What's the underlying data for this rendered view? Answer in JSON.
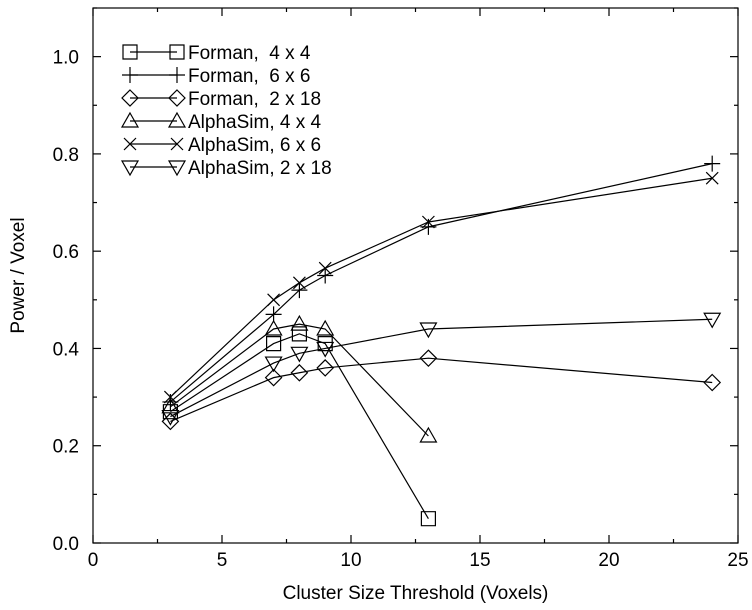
{
  "chart_data": {
    "type": "line",
    "title": "",
    "xlabel": "Cluster Size Threshold (Voxels)",
    "ylabel": "Power / Voxel",
    "xlim": [
      0,
      25
    ],
    "ylim": [
      0,
      1.1
    ],
    "xticks": [
      0,
      5,
      10,
      15,
      20,
      25
    ],
    "yticks": [
      0.0,
      0.2,
      0.4,
      0.6,
      0.8,
      1.0
    ],
    "xtick_labels": [
      "0",
      "5",
      "10",
      "15",
      "20",
      "25"
    ],
    "ytick_labels": [
      "0.0",
      "0.2",
      "0.4",
      "0.6",
      "0.8",
      "1.0"
    ],
    "grid": false,
    "legend_position": "top-left",
    "series": [
      {
        "name": "Forman,  4 x 4",
        "marker": "square",
        "points": [
          [
            3,
            0.27
          ],
          [
            7,
            0.41
          ],
          [
            8,
            0.43
          ],
          [
            9,
            0.41
          ],
          [
            13,
            0.05
          ]
        ]
      },
      {
        "name": "Forman,  6 x 6",
        "marker": "plus",
        "points": [
          [
            3,
            0.29
          ],
          [
            7,
            0.47
          ],
          [
            8,
            0.52
          ],
          [
            9,
            0.55
          ],
          [
            13,
            0.65
          ],
          [
            24,
            0.78
          ]
        ]
      },
      {
        "name": "Forman,  2 x 18",
        "marker": "diamond",
        "points": [
          [
            3,
            0.25
          ],
          [
            7,
            0.34
          ],
          [
            8,
            0.35
          ],
          [
            9,
            0.36
          ],
          [
            13,
            0.38
          ],
          [
            24,
            0.33
          ]
        ]
      },
      {
        "name": "AlphaSim, 4 x 4",
        "marker": "triangle-up",
        "points": [
          [
            3,
            0.28
          ],
          [
            7,
            0.44
          ],
          [
            8,
            0.45
          ],
          [
            9,
            0.44
          ],
          [
            13,
            0.22
          ]
        ]
      },
      {
        "name": "AlphaSim, 6 x 6",
        "marker": "x",
        "points": [
          [
            3,
            0.3
          ],
          [
            7,
            0.5
          ],
          [
            8,
            0.535
          ],
          [
            9,
            0.565
          ],
          [
            13,
            0.66
          ],
          [
            24,
            0.75
          ]
        ]
      },
      {
        "name": "AlphaSim, 2 x 18",
        "marker": "triangle-down",
        "points": [
          [
            3,
            0.26
          ],
          [
            7,
            0.37
          ],
          [
            8,
            0.39
          ],
          [
            9,
            0.4
          ],
          [
            13,
            0.44
          ],
          [
            24,
            0.46
          ]
        ]
      }
    ]
  }
}
